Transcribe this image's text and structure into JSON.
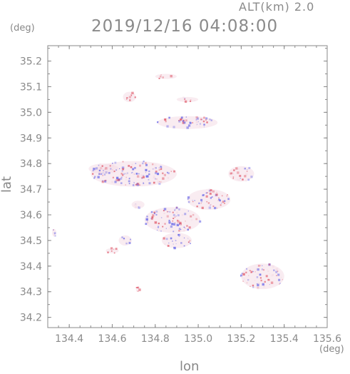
{
  "header": {
    "alt_label": "ALT(km) 2.0",
    "title": "2019/12/16 04:08:00",
    "unit_y": "(deg)",
    "unit_x": "(deg)"
  },
  "chart_data": {
    "type": "heatmap",
    "title": "2019/12/16 04:08:00",
    "xlabel": "lon",
    "ylabel": "lat",
    "xlim": [
      134.3,
      135.6
    ],
    "ylim": [
      34.16,
      35.26
    ],
    "xticks": [
      134.4,
      134.6,
      134.8,
      135.0,
      135.2,
      135.4,
      135.6
    ],
    "yticks": [
      34.2,
      34.3,
      34.4,
      34.5,
      34.6,
      34.7,
      34.8,
      34.9,
      35.0,
      35.1,
      35.2
    ],
    "xtick_labels": [
      "134.4",
      "134.6",
      "134.8",
      "135.0",
      "135.2",
      "135.4",
      "135.6"
    ],
    "ytick_labels": [
      "34.2",
      "34.3",
      "34.4",
      "34.5",
      "34.6",
      "34.7",
      "34.8",
      "34.9",
      "35.0",
      "35.1",
      "35.2"
    ],
    "grid": false,
    "colors": {
      "positive": "#e05a6a",
      "negative": "#6a6ae8",
      "neutral": "#f4dde6"
    },
    "regions": [
      {
        "lon": 134.7,
        "lat": 34.76,
        "w": 0.4,
        "h": 0.1,
        "tone": 0.0
      },
      {
        "lon": 134.56,
        "lat": 34.78,
        "w": 0.14,
        "h": 0.04,
        "tone": -0.2
      },
      {
        "lon": 134.95,
        "lat": 34.96,
        "w": 0.28,
        "h": 0.05,
        "tone": -0.1
      },
      {
        "lon": 134.88,
        "lat": 34.58,
        "w": 0.26,
        "h": 0.1,
        "tone": 0.1
      },
      {
        "lon": 135.05,
        "lat": 34.66,
        "w": 0.2,
        "h": 0.08,
        "tone": -0.1
      },
      {
        "lon": 134.9,
        "lat": 34.5,
        "w": 0.14,
        "h": 0.06,
        "tone": -0.3
      },
      {
        "lon": 135.3,
        "lat": 34.36,
        "w": 0.2,
        "h": 0.1,
        "tone": 0.0
      },
      {
        "lon": 135.2,
        "lat": 34.76,
        "w": 0.12,
        "h": 0.06,
        "tone": 0.1
      },
      {
        "lon": 134.68,
        "lat": 35.06,
        "w": 0.06,
        "h": 0.04,
        "tone": 0.8
      },
      {
        "lon": 134.85,
        "lat": 35.14,
        "w": 0.1,
        "h": 0.02,
        "tone": 0.5
      },
      {
        "lon": 134.95,
        "lat": 35.05,
        "w": 0.1,
        "h": 0.02,
        "tone": 0.3
      },
      {
        "lon": 134.6,
        "lat": 34.46,
        "w": 0.06,
        "h": 0.02,
        "tone": 0.8
      },
      {
        "lon": 134.72,
        "lat": 34.31,
        "w": 0.02,
        "h": 0.02,
        "tone": 0.9
      },
      {
        "lon": 134.33,
        "lat": 34.53,
        "w": 0.02,
        "h": 0.03,
        "tone": -0.5
      },
      {
        "lon": 134.72,
        "lat": 34.64,
        "w": 0.06,
        "h": 0.03,
        "tone": -0.4
      },
      {
        "lon": 134.66,
        "lat": 34.5,
        "w": 0.06,
        "h": 0.04,
        "tone": -0.5
      }
    ]
  }
}
